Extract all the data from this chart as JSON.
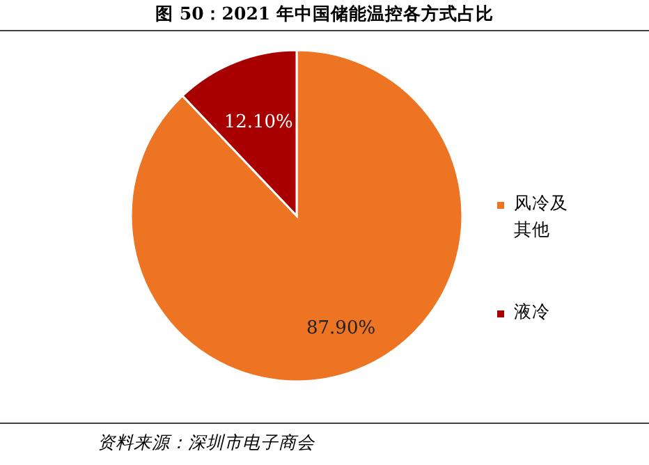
{
  "chart_data": {
    "type": "pie",
    "title": "图 50：2021 年中国储能温控各方式占比",
    "categories": [
      "风冷及其他",
      "液冷"
    ],
    "values": [
      87.9,
      12.1
    ],
    "colors": [
      "#ec7423",
      "#a80000"
    ],
    "value_labels": [
      "87.90%",
      "12.10%"
    ],
    "legend": "right",
    "annotations": [
      "资料来源：深圳市电子商会"
    ]
  }
}
